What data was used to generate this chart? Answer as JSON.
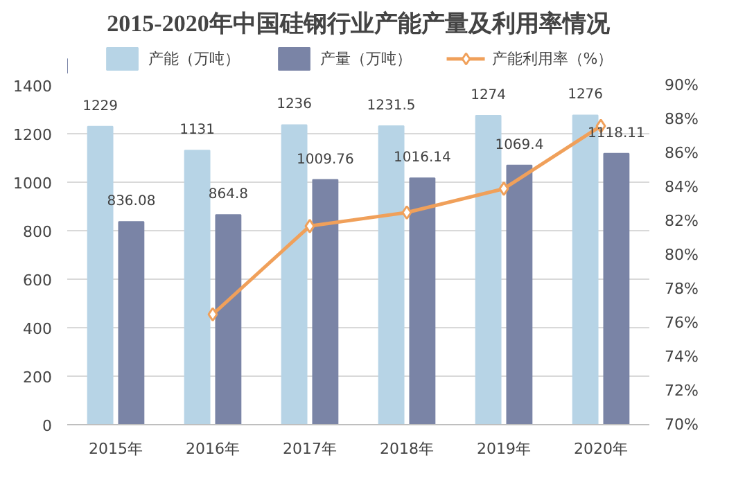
{
  "chart_data": {
    "type": "bar",
    "title": "2015-2020年中国硅钢行业产能产量及利用率情况",
    "categories": [
      "2015年",
      "2016年",
      "2017年",
      "2018年",
      "2019年",
      "2020年"
    ],
    "series": [
      {
        "name": "产能（万吨）",
        "color": "#b7d4e6",
        "values": [
          1229,
          1131,
          1236,
          1231.5,
          1274,
          1276
        ],
        "data_labels": true
      },
      {
        "name": "产量（万吨）",
        "color": "#7a84a6",
        "values": [
          836.08,
          864.8,
          1009.76,
          1016.14,
          1069.4,
          1118.11
        ],
        "data_labels": true
      },
      {
        "name": "产能利用率（%）",
        "type": "line",
        "axis": "y2",
        "color": "#f0a05a",
        "values": [
          null,
          76.5,
          81.7,
          82.5,
          83.9,
          87.6
        ]
      }
    ],
    "ylim": [
      0,
      1400
    ],
    "yticks": [
      0,
      200,
      400,
      600,
      800,
      1000,
      1200,
      1400
    ],
    "y2lim": [
      70,
      90
    ],
    "y2ticks": [
      {
        "value": 70,
        "label": "70%"
      },
      {
        "value": 72,
        "label": "72%"
      },
      {
        "value": 74,
        "label": "74%"
      },
      {
        "value": 76,
        "label": "76%"
      },
      {
        "value": 78,
        "label": "78%"
      },
      {
        "value": 80,
        "label": "80%"
      },
      {
        "value": 82,
        "label": "82%"
      },
      {
        "value": 84,
        "label": "84%"
      },
      {
        "value": 86,
        "label": "86%"
      },
      {
        "value": 88,
        "label": "88%"
      },
      {
        "value": 90,
        "label": "90%"
      }
    ],
    "grid": "y",
    "legend": "top",
    "marker": "diamond",
    "line_style": "solid"
  }
}
